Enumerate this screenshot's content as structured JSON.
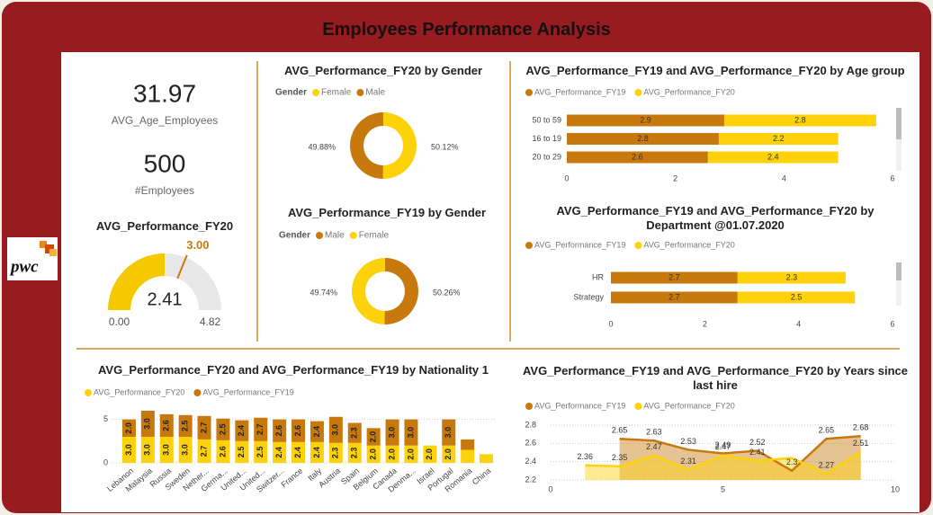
{
  "title": "Employees Performance Analysis",
  "logo": "pwc",
  "cards": [
    {
      "value": 31.97,
      "label": "AVG_Age_Employees"
    },
    {
      "value": 500,
      "label": "#Employees"
    }
  ],
  "chart_data": [
    {
      "type": "gauge",
      "title": "AVG_Performance_FY20",
      "values": [
        2.41
      ],
      "ylim": [
        0,
        4.82
      ],
      "yticks": [
        {
          "value": 0,
          "label": "0.00"
        },
        {
          "value": 4.82,
          "label": "4.82"
        }
      ],
      "target": {
        "value": 3,
        "label": "3.00"
      },
      "color": "#f6c800",
      "target_color": "#c8790d"
    },
    {
      "type": "pie",
      "title": "AVG_Performance_FY20 by Gender",
      "legend_title": "Gender",
      "categories": [
        "Female",
        "Male"
      ],
      "values": [
        50.12,
        49.88
      ],
      "value_labels": [
        "50.12%",
        "49.88%"
      ],
      "colors": [
        "#fdd20a",
        "#c8790d"
      ]
    },
    {
      "type": "pie",
      "title": "AVG_Performance_FY19 by Gender",
      "legend_title": "Gender",
      "categories": [
        "Male",
        "Female"
      ],
      "values": [
        50.26,
        49.74
      ],
      "value_labels": [
        "50.26%",
        "49.74%"
      ],
      "colors": [
        "#c8790d",
        "#fdd20a"
      ]
    },
    {
      "type": "bar",
      "orientation": "horizontal",
      "stacked": true,
      "title": "AVG_Performance_FY19 and AVG_Performance_FY20 by Age group",
      "categories": [
        "50 to 59",
        "16 to 19",
        "20 to 29"
      ],
      "series": [
        {
          "name": "AVG_Performance_FY19",
          "color": "#c8790d",
          "values": [
            2.9,
            2.8,
            2.6
          ]
        },
        {
          "name": "AVG_Performance_FY20",
          "color": "#fdd20a",
          "values": [
            2.8,
            2.2,
            2.4
          ]
        }
      ],
      "xlim": [
        0,
        6
      ],
      "xticks": [
        0,
        2,
        4,
        6
      ]
    },
    {
      "type": "bar",
      "orientation": "horizontal",
      "stacked": true,
      "title": "AVG_Performance_FY19 and AVG_Performance_FY20 by Department @01.07.2020",
      "categories": [
        "HR",
        "Strategy"
      ],
      "series": [
        {
          "name": "AVG_Performance_FY19",
          "color": "#c8790d",
          "values": [
            2.7,
            2.7
          ]
        },
        {
          "name": "AVG_Performance_FY20",
          "color": "#fdd20a",
          "values": [
            2.3,
            2.5
          ]
        }
      ],
      "xlim": [
        0,
        6
      ],
      "xticks": [
        0,
        2,
        4,
        6
      ]
    },
    {
      "type": "bar",
      "orientation": "vertical",
      "stacked": true,
      "grid": true,
      "title": "AVG_Performance_FY20 and AVG_Performance_FY19 by Nationality 1",
      "categories": [
        "Lebanon",
        "Malaysia",
        "Russia",
        "Sweden",
        "Nether...",
        "Germa...",
        "United...",
        "United...",
        "Switzer...",
        "France",
        "Italy",
        "Austria",
        "Spain",
        "Belgium",
        "Canada",
        "Denma...",
        "Israel",
        "Portugal",
        "Romania",
        "China"
      ],
      "series": [
        {
          "name": "AVG_Performance_FY20",
          "color": "#fdd20a",
          "values": [
            3.0,
            3.0,
            3.0,
            3.0,
            2.7,
            2.6,
            2.5,
            2.5,
            2.4,
            2.4,
            2.4,
            2.3,
            2.3,
            2.0,
            2.0,
            2.0,
            2.0,
            2.0,
            1.5,
            1.0
          ],
          "value_labels": [
            "3.0",
            "3.0",
            "3.0",
            "3.0",
            "2.7",
            "2.6",
            "2.5",
            "2.5",
            "2.4",
            "2.4",
            "2.4",
            "2.3",
            "2.3",
            "2.0",
            "2.0",
            "2.0",
            "2.0",
            "2.0",
            null,
            null
          ]
        },
        {
          "name": "AVG_Performance_FY19",
          "color": "#c8790d",
          "values": [
            2.0,
            3.0,
            2.6,
            2.5,
            2.7,
            2.5,
            2.4,
            2.7,
            2.6,
            2.6,
            2.4,
            3.0,
            2.3,
            2.0,
            3.0,
            3.0,
            null,
            3.0,
            1.2,
            null
          ],
          "value_labels": [
            "2.0",
            "3.0",
            "2.6",
            "2.5",
            "2.7",
            "2.5",
            "2.4",
            "2.7",
            "2.6",
            "2.6",
            "2.4",
            "3.0",
            "2.3",
            "2.0",
            "3.0",
            "3.0",
            null,
            "3.0",
            null,
            null
          ]
        }
      ],
      "ylim": [
        0,
        6
      ],
      "yticks": [
        0,
        5
      ]
    },
    {
      "type": "line",
      "area": true,
      "grid": true,
      "title": "AVG_Performance_FY19 and AVG_Performance_FY20 by Years since last hire",
      "x": [
        1,
        2,
        3,
        4,
        5,
        6,
        7,
        8,
        9
      ],
      "series": [
        {
          "name": "AVG_Performance_FY19",
          "color": "#c8790d",
          "values": [
            null,
            2.65,
            2.63,
            2.53,
            2.49,
            2.52,
            2.3,
            2.65,
            2.68
          ]
        },
        {
          "name": "AVG_Performance_FY20",
          "color": "#fdd20a",
          "values": [
            2.36,
            2.35,
            2.47,
            2.31,
            2.47,
            2.41,
            2.44,
            2.27,
            2.51
          ],
          "value_labels": [
            "2.36",
            "2.35",
            "2.47",
            "2.31",
            "2.47",
            "2.41",
            null,
            "2.27",
            "2.51"
          ]
        }
      ],
      "xlim": [
        0,
        10
      ],
      "xticks": [
        0,
        5,
        10
      ],
      "ylim": [
        2.2,
        2.8
      ],
      "yticks": [
        2.2,
        2.4,
        2.6,
        2.8
      ]
    }
  ]
}
